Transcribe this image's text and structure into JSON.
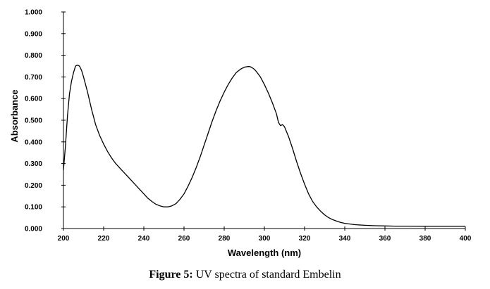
{
  "caption": {
    "label": "Figure 5:",
    "text": "UV spectra of standard Embelin"
  },
  "chart_data": {
    "type": "line",
    "xlabel": "Wavelength (nm)",
    "ylabel": "Absorbance",
    "xlim": [
      200,
      400
    ],
    "ylim": [
      0,
      1.0
    ],
    "x_ticks": [
      200,
      220,
      240,
      260,
      280,
      300,
      320,
      340,
      360,
      380,
      400
    ],
    "y_ticks": [
      "0.000",
      "0.100",
      "0.200",
      "0.300",
      "0.400",
      "0.500",
      "0.600",
      "0.700",
      "0.800",
      "0.900",
      "1.000"
    ],
    "grid": false,
    "legend": "none",
    "line_color": "#000000",
    "series": [
      {
        "x": [
          200,
          201,
          202,
          203,
          204,
          205,
          206,
          207,
          208,
          209,
          210,
          212,
          214,
          216,
          218,
          220,
          222,
          224,
          226,
          228,
          230,
          232,
          234,
          236,
          238,
          240,
          242,
          244,
          246,
          248,
          250,
          252,
          254,
          256,
          258,
          260,
          262,
          264,
          266,
          268,
          270,
          272,
          274,
          276,
          278,
          280,
          282,
          284,
          286,
          288,
          290,
          292,
          293,
          294,
          295,
          296,
          298,
          300,
          302,
          304,
          306,
          307,
          308,
          309,
          310,
          312,
          314,
          316,
          318,
          320,
          322,
          324,
          326,
          328,
          330,
          332,
          334,
          336,
          338,
          340,
          345,
          350,
          355,
          360,
          365,
          370,
          380,
          390,
          400
        ],
        "y": [
          0.27,
          0.38,
          0.52,
          0.62,
          0.68,
          0.72,
          0.75,
          0.755,
          0.75,
          0.73,
          0.7,
          0.63,
          0.55,
          0.48,
          0.43,
          0.39,
          0.355,
          0.325,
          0.3,
          0.28,
          0.26,
          0.24,
          0.22,
          0.2,
          0.18,
          0.16,
          0.14,
          0.125,
          0.112,
          0.105,
          0.1,
          0.1,
          0.105,
          0.115,
          0.135,
          0.16,
          0.195,
          0.235,
          0.28,
          0.33,
          0.385,
          0.44,
          0.495,
          0.545,
          0.59,
          0.63,
          0.665,
          0.695,
          0.72,
          0.735,
          0.745,
          0.748,
          0.747,
          0.742,
          0.735,
          0.725,
          0.7,
          0.665,
          0.625,
          0.58,
          0.53,
          0.49,
          0.475,
          0.48,
          0.47,
          0.425,
          0.37,
          0.31,
          0.255,
          0.205,
          0.16,
          0.125,
          0.1,
          0.08,
          0.063,
          0.05,
          0.041,
          0.034,
          0.028,
          0.024,
          0.018,
          0.015,
          0.013,
          0.012,
          0.011,
          0.011,
          0.01,
          0.01,
          0.01
        ]
      }
    ]
  }
}
